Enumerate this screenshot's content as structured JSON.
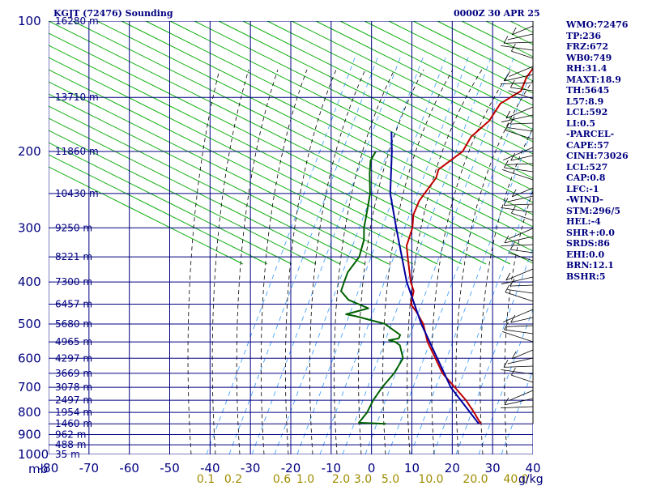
{
  "header": {
    "station": "KGJT (72476) Sounding",
    "time": "0000Z 30 APR 25"
  },
  "indices": [
    "WMO:72476",
    "TP:236",
    "FRZ:672",
    "WB0:749",
    "RH:31.4",
    "MAXT:18.9",
    "TH:5645",
    "L57:8.9",
    "LCL:592",
    "LI:0.5",
    "-PARCEL-",
    "CAPE:57",
    "CINH:73026",
    "LCL:527",
    "CAP:0.8",
    "LFC:-1",
    "-WIND-",
    "STM:296/5",
    "HEL:-4",
    "SHR+:0.0",
    "SRDS:86",
    "EHI:0.0",
    "BRN:12.1",
    "BSHR:5"
  ],
  "colors": {
    "grid": "#000080",
    "dry_adiabat": "#00aa00",
    "temperature": "#c00000",
    "dewpoint": "#006000",
    "parcel": "#0000a0",
    "mixing_ratio": "#3399ff",
    "moist_adiabat": "#000000",
    "mixing_label": "#a08c00"
  },
  "chart_data": {
    "type": "line",
    "title": "KGJT (72476) Sounding",
    "x_axis": {
      "unit_label": "mb",
      "ticks": [
        -80,
        -70,
        -60,
        -50,
        -40,
        -30,
        -20,
        -10,
        0,
        10,
        20,
        30,
        40
      ],
      "range": [
        -80,
        40
      ]
    },
    "y_axis": {
      "scale": "log",
      "ticks": [
        100,
        200,
        300,
        400,
        500,
        600,
        700,
        800,
        900,
        1000
      ],
      "range": [
        100,
        1000
      ]
    },
    "mixing_ratio_labels": {
      "values": [
        "0.1",
        "0.2",
        "0.6",
        "1.0",
        "2.0",
        "3.0",
        "5.0",
        "10.0",
        "20.0",
        "40.0"
      ],
      "unit": "g/kg"
    },
    "height_labels": [
      {
        "p": 100,
        "t": "16280 m"
      },
      {
        "p": 150,
        "t": "13710 m"
      },
      {
        "p": 200,
        "t": "11860 m"
      },
      {
        "p": 250,
        "t": "10430 m"
      },
      {
        "p": 300,
        "t": "9250 m"
      },
      {
        "p": 350,
        "t": "8221 m"
      },
      {
        "p": 400,
        "t": "7300 m"
      },
      {
        "p": 450,
        "t": "6457 m"
      },
      {
        "p": 500,
        "t": "5680 m"
      },
      {
        "p": 550,
        "t": "4965 m"
      },
      {
        "p": 600,
        "t": "4297 m"
      },
      {
        "p": 650,
        "t": "3669 m"
      },
      {
        "p": 700,
        "t": "3078 m"
      },
      {
        "p": 750,
        "t": "2497 m"
      },
      {
        "p": 800,
        "t": "1954 m"
      },
      {
        "p": 850,
        "t": "1460 m"
      },
      {
        "p": 900,
        "t": "962 m"
      },
      {
        "p": 950,
        "t": "488 m"
      },
      {
        "p": 1000,
        "t": "35 m"
      }
    ],
    "series": [
      {
        "id": "temperature",
        "points": [
          [
            850,
            19.5
          ],
          [
            800,
            15
          ],
          [
            750,
            10
          ],
          [
            700,
            4
          ],
          [
            650,
            -2.5
          ],
          [
            600,
            -8
          ],
          [
            550,
            -14
          ],
          [
            500,
            -19.5
          ],
          [
            470,
            -24
          ],
          [
            450,
            -27.5
          ],
          [
            420,
            -30
          ],
          [
            400,
            -33
          ],
          [
            350,
            -40
          ],
          [
            330,
            -43
          ],
          [
            300,
            -46
          ],
          [
            280,
            -49
          ],
          [
            260,
            -51
          ],
          [
            250,
            -51.5
          ],
          [
            240,
            -52
          ],
          [
            230,
            -52.5
          ],
          [
            220,
            -54
          ],
          [
            200,
            -52.5
          ],
          [
            185,
            -54
          ],
          [
            170,
            -53.5
          ],
          [
            155,
            -55
          ],
          [
            145,
            -53
          ],
          [
            135,
            -55
          ],
          [
            125,
            -56
          ],
          [
            112,
            -57
          ],
          [
            100,
            -57.5
          ]
        ]
      },
      {
        "id": "dewpoint",
        "points": [
          [
            850,
            -4
          ],
          [
            845,
            -11
          ],
          [
            800,
            -11.5
          ],
          [
            750,
            -13
          ],
          [
            700,
            -14
          ],
          [
            650,
            -14.5
          ],
          [
            600,
            -16
          ],
          [
            560,
            -20
          ],
          [
            550,
            -22
          ],
          [
            545,
            -24
          ],
          [
            540,
            -22
          ],
          [
            530,
            -22.5
          ],
          [
            500,
            -29
          ],
          [
            480,
            -38
          ],
          [
            475,
            -41
          ],
          [
            460,
            -37
          ],
          [
            440,
            -44
          ],
          [
            420,
            -48
          ],
          [
            400,
            -49.5
          ],
          [
            380,
            -51
          ],
          [
            350,
            -52
          ],
          [
            320,
            -55
          ],
          [
            300,
            -58
          ],
          [
            270,
            -62
          ],
          [
            250,
            -65
          ],
          [
            225,
            -70
          ],
          [
            210,
            -73
          ],
          [
            200,
            -74
          ]
        ]
      },
      {
        "id": "parcel",
        "points": [
          [
            850,
            19
          ],
          [
            700,
            3
          ],
          [
            500,
            -20
          ],
          [
            400,
            -34
          ],
          [
            300,
            -50
          ],
          [
            250,
            -60
          ],
          [
            200,
            -70
          ],
          [
            180,
            -75
          ]
        ]
      }
    ]
  }
}
